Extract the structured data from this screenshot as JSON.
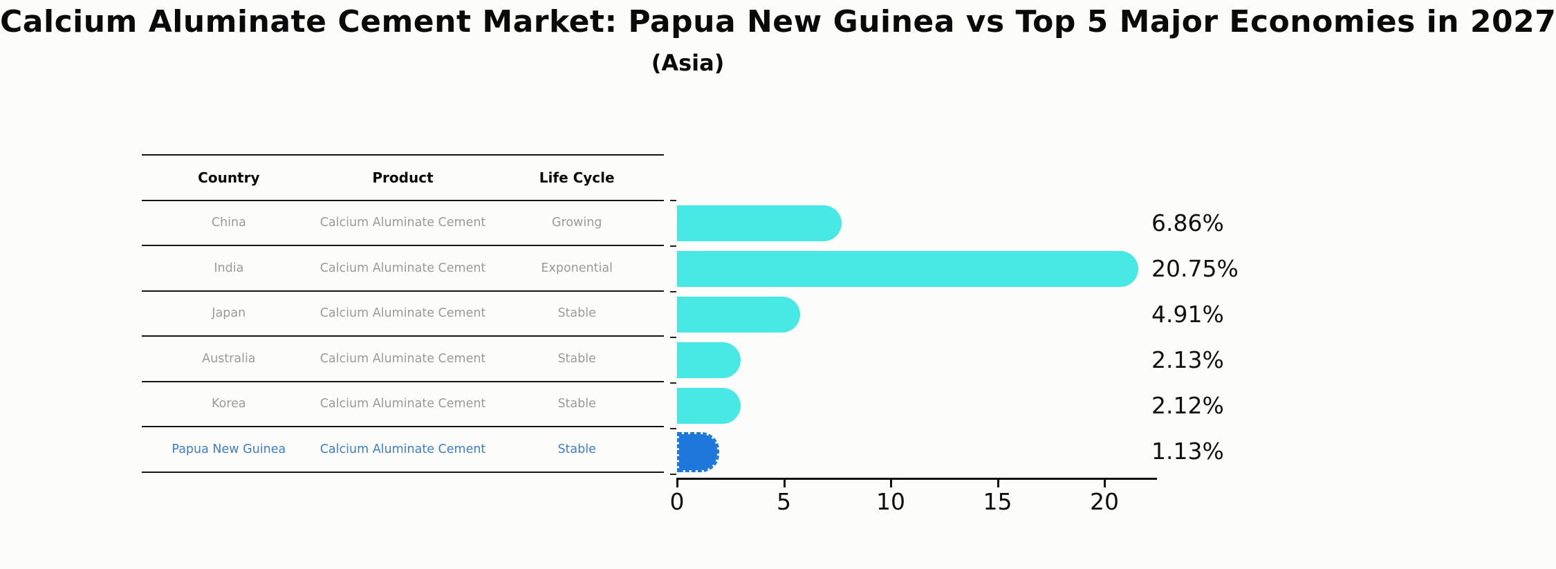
{
  "title": "Calcium Aluminate Cement Market: Papua New Guinea vs Top 5 Major Economies in 2027",
  "subtitle": "(Asia)",
  "table": {
    "headers": [
      "Country",
      "Product",
      "Life Cycle"
    ],
    "rows": [
      {
        "country": "China",
        "product": "Calcium Aluminate Cement",
        "life_cycle": "Growing",
        "highlight": false
      },
      {
        "country": "India",
        "product": "Calcium Aluminate Cement",
        "life_cycle": "Exponential",
        "highlight": false
      },
      {
        "country": "Japan",
        "product": "Calcium Aluminate Cement",
        "life_cycle": "Stable",
        "highlight": false
      },
      {
        "country": "Australia",
        "product": "Calcium Aluminate Cement",
        "life_cycle": "Stable",
        "highlight": false
      },
      {
        "country": "Korea",
        "product": "Calcium Aluminate Cement",
        "life_cycle": "Stable",
        "highlight": false
      },
      {
        "country": "Papua New Guinea",
        "product": "Calcium Aluminate Cement",
        "life_cycle": "Stable",
        "highlight": true
      }
    ]
  },
  "chart_data": {
    "type": "bar",
    "orientation": "horizontal",
    "title": "Calcium Aluminate Cement Market: Papua New Guinea vs Top 5 Major Economies in 2027",
    "subtitle": "(Asia)",
    "categories": [
      "China",
      "India",
      "Japan",
      "Australia",
      "Korea",
      "Papua New Guinea"
    ],
    "values": [
      6.86,
      20.75,
      4.91,
      2.13,
      2.12,
      1.13
    ],
    "value_labels": [
      "6.86%",
      "20.75%",
      "4.91%",
      "2.13%",
      "2.12%",
      "1.13%"
    ],
    "xlabel": "",
    "ylabel": "",
    "xlim": [
      0,
      22.5
    ],
    "x_ticks": [
      0,
      5,
      10,
      15,
      20
    ],
    "grid": false,
    "legend": false,
    "highlight_index": 5,
    "bar_color": "#48e8e4",
    "highlight_color": "#1e78dc",
    "highlight_text_color": "#3d7ec4",
    "axis_color": "#0d0d0d"
  }
}
